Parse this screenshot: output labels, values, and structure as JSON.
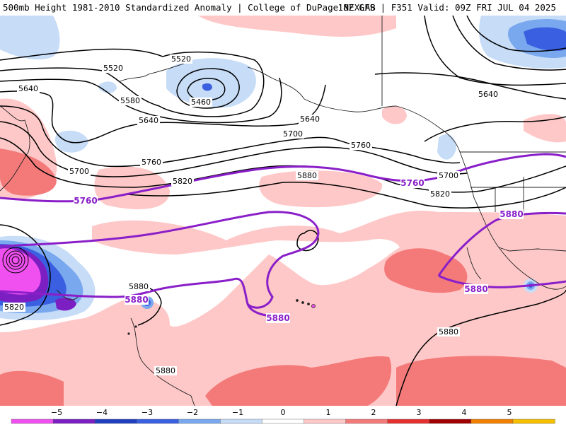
{
  "header": {
    "title_left": "500mb Height 1981-2010 Standardized Anomaly | College of DuPage NEXLAB",
    "title_right": "18Z GFS | F351 Valid: 09Z FRI JUL 04 2025"
  },
  "map": {
    "contour_interval_dam": 60,
    "contours": [
      {
        "label": "5460",
        "color": "#000000"
      },
      {
        "label": "5520",
        "color": "#000000"
      },
      {
        "label": "5520",
        "color": "#000000"
      },
      {
        "label": "5580",
        "color": "#000000"
      },
      {
        "label": "5640",
        "color": "#000000"
      },
      {
        "label": "5640",
        "color": "#000000"
      },
      {
        "label": "5640",
        "color": "#000000"
      },
      {
        "label": "5640",
        "color": "#000000"
      },
      {
        "label": "5700",
        "color": "#000000"
      },
      {
        "label": "5700",
        "color": "#000000"
      },
      {
        "label": "5700",
        "color": "#000000"
      },
      {
        "label": "5760",
        "color": "#000000"
      },
      {
        "label": "5760",
        "color": "#000000"
      },
      {
        "label": "5820",
        "color": "#000000"
      },
      {
        "label": "5820",
        "color": "#000000"
      },
      {
        "label": "5820",
        "color": "#000000"
      },
      {
        "label": "5880",
        "color": "#000000"
      },
      {
        "label": "5880",
        "color": "#000000"
      },
      {
        "label": "5880",
        "color": "#000000"
      },
      {
        "label": "5880",
        "color": "#000000"
      }
    ],
    "purple_contours": [
      {
        "label": "5760"
      },
      {
        "label": "5760"
      },
      {
        "label": "5880"
      },
      {
        "label": "5880"
      },
      {
        "label": "5880"
      },
      {
        "label": "5880"
      }
    ],
    "colors": {
      "pos1": "#ffc8c8",
      "pos2": "#f47a7a",
      "neg1": "#c6dcf7",
      "neg2": "#7aa8ef",
      "neg3": "#3a5fe0",
      "neg4": "#7b1fc2",
      "neg5": "#f050f0",
      "purple_line": "#8a1fc9",
      "coast": "#222222"
    }
  },
  "colorbar": {
    "ticks": [
      "−5",
      "−4",
      "−3",
      "−2",
      "−1",
      "0",
      "1",
      "2",
      "3",
      "4",
      "5"
    ],
    "colors": [
      "#f050f0",
      "#7b1fc2",
      "#1f3fbf",
      "#3a5fe0",
      "#7aa8ef",
      "#c6dcf7",
      "#ffffff",
      "#ffc8c8",
      "#f47a7a",
      "#e63030",
      "#a00000",
      "#f08000",
      "#f5c000"
    ]
  }
}
